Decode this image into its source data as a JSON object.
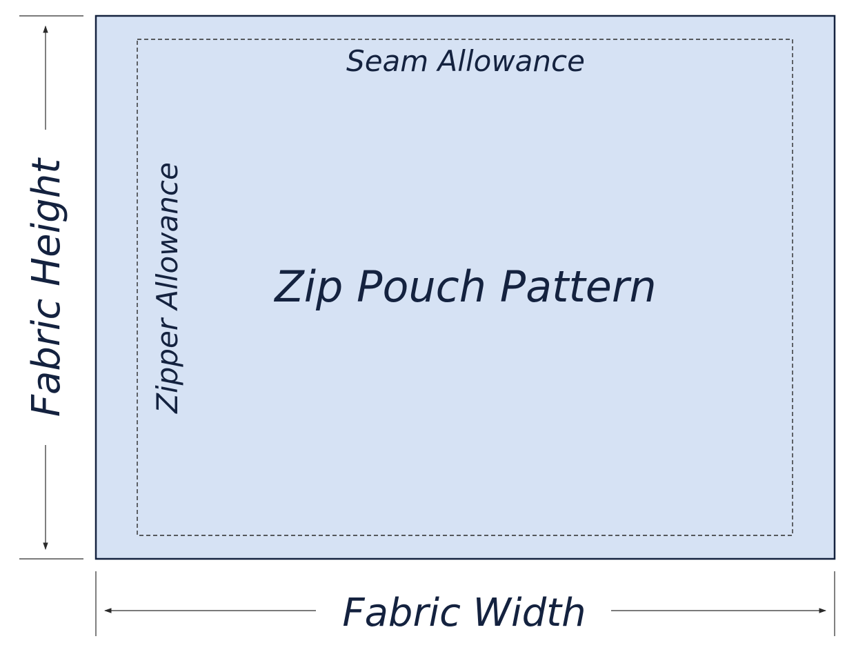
{
  "colors": {
    "fabric_fill": "#d6e2f4",
    "ink": "#14223f",
    "line": "#2a2a2a"
  },
  "labels": {
    "title": "Zip Pouch Pattern",
    "seam_allowance": "Seam Allowance",
    "zipper_allowance": "Zipper Allowance",
    "fabric_width": "Fabric Width",
    "fabric_height": "Fabric Height"
  }
}
